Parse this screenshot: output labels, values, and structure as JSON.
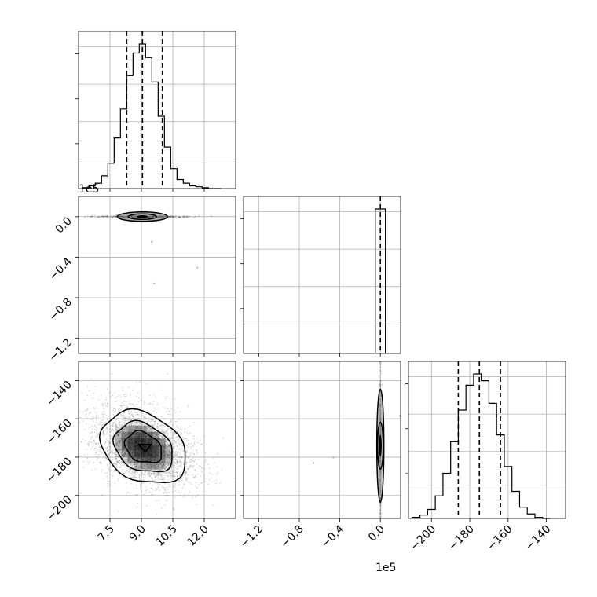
{
  "chart_data": {
    "type": "corner",
    "parameters": [
      {
        "axis_offset": "1e5",
        "range": [
          6.0,
          13.5
        ],
        "ticks": [
          7.5,
          9.0,
          10.5,
          12.0
        ],
        "tick_labels": [
          "7.5",
          "9.0",
          "10.5",
          "12.0"
        ],
        "quantiles": [
          8.3,
          9.05,
          10.0
        ],
        "histogram": {
          "bin_edges": [
            6.2,
            6.5,
            6.8,
            7.1,
            7.4,
            7.7,
            8.0,
            8.3,
            8.6,
            8.9,
            9.2,
            9.5,
            9.8,
            10.1,
            10.4,
            10.7,
            11.0,
            11.3,
            11.6,
            11.9,
            12.2,
            12.5,
            12.8
          ],
          "counts": [
            1,
            3,
            6,
            14,
            28,
            56,
            88,
            125,
            150,
            160,
            145,
            118,
            80,
            46,
            22,
            10,
            6,
            3,
            2,
            1,
            0,
            0
          ]
        }
      },
      {
        "axis_offset": "1e5",
        "range": [
          -1.35,
          0.2
        ],
        "ticks": [
          -1.2,
          -0.8,
          -0.4,
          0.0
        ],
        "tick_labels": [
          "−1.2",
          "−0.8",
          "−0.4",
          "0.0"
        ],
        "quantiles": [
          0.0
        ],
        "histogram": {
          "bin_edges": [
            -0.05,
            0.05
          ],
          "counts": [
            160
          ]
        }
      },
      {
        "range": [
          -212,
          -130
        ],
        "ticks": [
          -200,
          -180,
          -160,
          -140
        ],
        "tick_labels": [
          "−200",
          "−180",
          "−160",
          "−140"
        ],
        "quantiles": [
          -186,
          -175,
          -164
        ],
        "histogram": {
          "bin_edges": [
            -210,
            -206,
            -202,
            -198,
            -194,
            -190,
            -186,
            -182,
            -178,
            -174,
            -170,
            -166,
            -162,
            -158,
            -154,
            -150,
            -146,
            -142,
            -138
          ],
          "counts": [
            1,
            3,
            8,
            20,
            40,
            68,
            96,
            118,
            128,
            122,
            102,
            74,
            46,
            24,
            10,
            4,
            1,
            0
          ]
        }
      }
    ],
    "density_levels": [
      0.39,
      0.86,
      0.99
    ],
    "grid": true
  }
}
